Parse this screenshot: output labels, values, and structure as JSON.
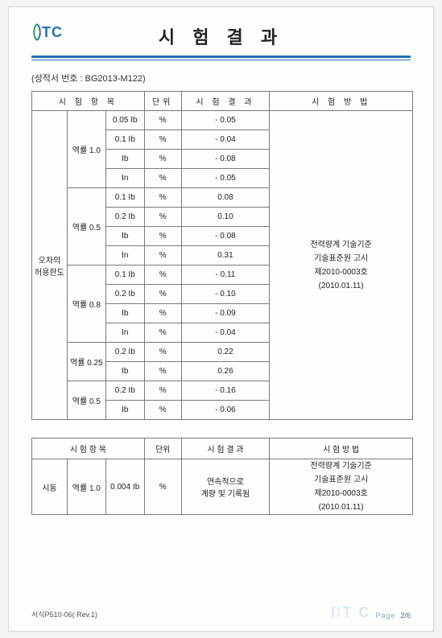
{
  "header": {
    "logo_text": "TC",
    "title": "시 험 결 과"
  },
  "subref_label": "(성적서 번호 : ",
  "subref_value": "BG2013-M122",
  "subref_close": ")",
  "table1": {
    "headers": {
      "item": "시 험 항 목",
      "unit": "단위",
      "result": "시 험 결 과",
      "method": "시 험 방 법"
    },
    "category": "오차의\n허용한도",
    "method_lines": [
      "전력량계 기술기준",
      "기술표준원 고시",
      "제2010-0003호",
      "(2010.01.11)"
    ],
    "groups": [
      {
        "pf": "역률 1.0",
        "rows": [
          {
            "load": "0.05 Ib",
            "unit": "%",
            "val": "- 0.05"
          },
          {
            "load": "0.1 Ib",
            "unit": "%",
            "val": "- 0.04"
          },
          {
            "load": "Ib",
            "unit": "%",
            "val": "- 0.08"
          },
          {
            "load": "In",
            "unit": "%",
            "val": "- 0.05"
          }
        ]
      },
      {
        "pf": "역률 0.5",
        "rows": [
          {
            "load": "0.1 Ib",
            "unit": "%",
            "val": "0.08"
          },
          {
            "load": "0.2 Ib",
            "unit": "%",
            "val": "0.10"
          },
          {
            "load": "Ib",
            "unit": "%",
            "val": "- 0.08"
          },
          {
            "load": "In",
            "unit": "%",
            "val": "0.31"
          }
        ]
      },
      {
        "pf": "역률 0.8",
        "rows": [
          {
            "load": "0.1 Ib",
            "unit": "%",
            "val": "- 0.11"
          },
          {
            "load": "0.2 Ib",
            "unit": "%",
            "val": "- 0.10"
          },
          {
            "load": "Ib",
            "unit": "%",
            "val": "- 0.09"
          },
          {
            "load": "In",
            "unit": "%",
            "val": "- 0.04"
          }
        ]
      },
      {
        "pf": "역률 0.25",
        "rows": [
          {
            "load": "0.2 Ib",
            "unit": "%",
            "val": "0.22"
          },
          {
            "load": "Ib",
            "unit": "%",
            "val": "0.26"
          }
        ]
      },
      {
        "pf": "역률 0.5",
        "rows": [
          {
            "load": "0.2 Ib",
            "unit": "%",
            "val": "- 0.16"
          },
          {
            "load": "Ib",
            "unit": "%",
            "val": "- 0.06"
          }
        ]
      }
    ]
  },
  "table2": {
    "headers": {
      "item": "시 험 항 목",
      "unit": "단위",
      "result": "시 험 결 과",
      "method": "시 험 방 법"
    },
    "row": {
      "category": "시동",
      "pf": "역률 1.0",
      "load": "0.004 Ib",
      "unit": "%",
      "result_line1": "연속적으로",
      "result_line2": "계량 및 기록됨"
    },
    "method_lines": [
      "전력량계 기술기준",
      "기술표준원 고시",
      "제2010-0003호",
      "(2010.01.11)"
    ]
  },
  "footer": {
    "form": "서식P510-06( Rev.1)",
    "page_label": "Page",
    "page_no": "2/6"
  },
  "colors": {
    "rule": "#1f72b5",
    "border": "#7a7a7a",
    "bg": "#fdfdfb"
  }
}
